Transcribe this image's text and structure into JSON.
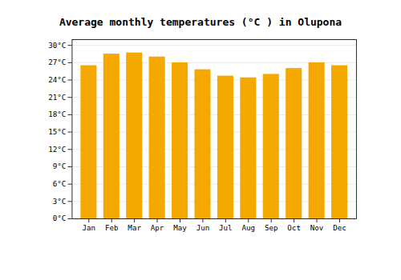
{
  "chart_data": {
    "type": "bar",
    "title": "Average monthly temperatures (°C ) in Olupona",
    "categories": [
      "Jan",
      "Feb",
      "Mar",
      "Apr",
      "May",
      "Jun",
      "Jul",
      "Aug",
      "Sep",
      "Oct",
      "Nov",
      "Dec"
    ],
    "values": [
      26.5,
      28.5,
      28.7,
      28.0,
      27.0,
      25.8,
      24.7,
      24.4,
      25.0,
      26.0,
      27.0,
      26.5
    ],
    "color": "#F5A800",
    "ylim": [
      0,
      31
    ],
    "yticks": [
      {
        "value": 0,
        "label": "0°C"
      },
      {
        "value": 3,
        "label": "3°C"
      },
      {
        "value": 6,
        "label": "6°C"
      },
      {
        "value": 9,
        "label": "9°C"
      },
      {
        "value": 12,
        "label": "12°C"
      },
      {
        "value": 15,
        "label": "15°C"
      },
      {
        "value": 18,
        "label": "18°C"
      },
      {
        "value": 21,
        "label": "21°C"
      },
      {
        "value": 24,
        "label": "24°C"
      },
      {
        "value": 27,
        "label": "27°C"
      },
      {
        "value": 30,
        "label": "30°C"
      }
    ],
    "grid": true
  }
}
